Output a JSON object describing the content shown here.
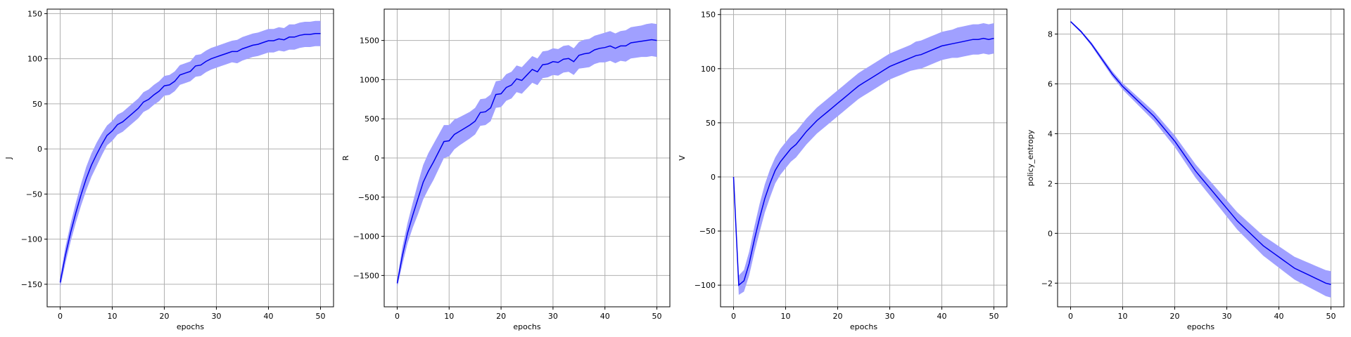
{
  "colors": {
    "line": "#0000ee",
    "band": "#a0a0ff",
    "grid": "#b0b0b0",
    "axis": "#000000"
  },
  "chart_data": [
    {
      "type": "line",
      "xlabel": "epochs",
      "ylabel": "J",
      "xlim": [
        -2.5,
        52.5
      ],
      "ylim": [
        -175,
        155
      ],
      "xticks": [
        0,
        10,
        20,
        30,
        40,
        50
      ],
      "yticks": [
        -150,
        -100,
        -50,
        0,
        50,
        100,
        150
      ],
      "grid": true,
      "band": "mean ± std",
      "x": [
        0,
        1,
        2,
        3,
        4,
        5,
        6,
        7,
        8,
        9,
        10,
        11,
        12,
        13,
        14,
        15,
        16,
        17,
        18,
        19,
        20,
        21,
        22,
        23,
        24,
        25,
        26,
        27,
        28,
        29,
        30,
        31,
        32,
        33,
        34,
        35,
        36,
        37,
        38,
        39,
        40,
        41,
        42,
        43,
        44,
        45,
        46,
        47,
        48,
        49,
        50
      ],
      "mean": [
        -148,
        -118,
        -93,
        -71,
        -51,
        -33,
        -18,
        -6,
        5,
        15,
        20,
        27,
        30,
        35,
        40,
        45,
        52,
        55,
        60,
        64,
        70,
        71,
        75,
        82,
        84,
        86,
        92,
        93,
        97,
        100,
        102,
        104,
        106,
        108,
        108,
        111,
        113,
        115,
        116,
        118,
        120,
        120,
        122,
        121,
        124,
        124,
        126,
        127,
        127,
        128,
        128
      ],
      "std": [
        6,
        9,
        10,
        11,
        12,
        13,
        13,
        13,
        12,
        11,
        11,
        11,
        11,
        11,
        11,
        11,
        11,
        11,
        11,
        11,
        11,
        11,
        11,
        11,
        11,
        11,
        12,
        12,
        12,
        12,
        12,
        12,
        12,
        12,
        13,
        13,
        13,
        13,
        13,
        13,
        13,
        13,
        13,
        13,
        14,
        14,
        14,
        14,
        14,
        14,
        14
      ]
    },
    {
      "type": "line",
      "xlabel": "epochs",
      "ylabel": "R",
      "xlim": [
        -2.5,
        52.5
      ],
      "ylim": [
        -1900,
        1900
      ],
      "xticks": [
        0,
        10,
        20,
        30,
        40,
        50
      ],
      "yticks": [
        -1500,
        -1000,
        -500,
        0,
        500,
        1000,
        1500
      ],
      "grid": true,
      "band": "mean ± std",
      "x": [
        0,
        1,
        2,
        3,
        4,
        5,
        6,
        7,
        8,
        9,
        10,
        11,
        12,
        13,
        14,
        15,
        16,
        17,
        18,
        19,
        20,
        21,
        22,
        23,
        24,
        25,
        26,
        27,
        28,
        29,
        30,
        31,
        32,
        33,
        34,
        35,
        36,
        37,
        38,
        39,
        40,
        41,
        42,
        43,
        44,
        45,
        46,
        47,
        48,
        49,
        50
      ],
      "mean": [
        -1600,
        -1250,
        -960,
        -730,
        -520,
        -310,
        -170,
        -50,
        80,
        210,
        220,
        300,
        340,
        380,
        420,
        470,
        580,
        590,
        640,
        810,
        820,
        900,
        930,
        1010,
        990,
        1060,
        1130,
        1100,
        1190,
        1200,
        1230,
        1220,
        1260,
        1270,
        1230,
        1310,
        1330,
        1340,
        1380,
        1400,
        1410,
        1430,
        1400,
        1430,
        1430,
        1470,
        1480,
        1490,
        1500,
        1510,
        1500
      ],
      "std": [
        50,
        110,
        130,
        160,
        200,
        220,
        230,
        230,
        220,
        210,
        200,
        190,
        180,
        175,
        170,
        170,
        170,
        170,
        170,
        170,
        170,
        170,
        170,
        170,
        170,
        170,
        170,
        170,
        170,
        170,
        170,
        170,
        170,
        170,
        170,
        170,
        180,
        180,
        180,
        180,
        190,
        190,
        190,
        190,
        200,
        200,
        200,
        200,
        210,
        210,
        210
      ]
    },
    {
      "type": "line",
      "xlabel": "epochs",
      "ylabel": "V",
      "xlim": [
        -2.5,
        52.5
      ],
      "ylim": [
        -120,
        155
      ],
      "xticks": [
        0,
        10,
        20,
        30,
        40,
        50
      ],
      "yticks": [
        -100,
        -50,
        0,
        50,
        100,
        150
      ],
      "grid": true,
      "band": "mean ± std",
      "x": [
        0,
        1,
        2,
        3,
        4,
        5,
        6,
        7,
        8,
        9,
        10,
        11,
        12,
        13,
        14,
        15,
        16,
        17,
        18,
        19,
        20,
        21,
        22,
        23,
        24,
        25,
        26,
        27,
        28,
        29,
        30,
        31,
        32,
        33,
        34,
        35,
        36,
        37,
        38,
        39,
        40,
        41,
        42,
        43,
        44,
        45,
        46,
        47,
        48,
        49,
        50
      ],
      "mean": [
        0,
        -100,
        -96,
        -80,
        -58,
        -38,
        -20,
        -6,
        6,
        14,
        20,
        26,
        30,
        36,
        42,
        47,
        52,
        56,
        60,
        64,
        68,
        72,
        76,
        80,
        84,
        87,
        90,
        93,
        96,
        99,
        102,
        104,
        106,
        108,
        110,
        112,
        113,
        115,
        117,
        119,
        121,
        122,
        123,
        124,
        125,
        126,
        127,
        127,
        128,
        127,
        128
      ],
      "std": [
        0,
        9,
        10,
        11,
        12,
        13,
        13,
        13,
        12,
        12,
        12,
        12,
        12,
        12,
        12,
        12,
        12,
        12,
        12,
        12,
        12,
        12,
        12,
        12,
        12,
        12,
        12,
        12,
        12,
        12,
        12,
        12,
        12,
        12,
        12,
        13,
        13,
        13,
        13,
        13,
        13,
        13,
        13,
        14,
        14,
        14,
        14,
        14,
        14,
        14,
        14
      ]
    },
    {
      "type": "line",
      "xlabel": "epochs",
      "ylabel": "policy_entropy",
      "xlim": [
        -2.5,
        52.5
      ],
      "ylim": [
        -2.95,
        9.0
      ],
      "xticks": [
        0,
        10,
        20,
        30,
        40,
        50
      ],
      "yticks": [
        -2,
        0,
        2,
        4,
        6,
        8
      ],
      "grid": true,
      "band": "mean ± std",
      "x": [
        0,
        1,
        2,
        3,
        4,
        5,
        6,
        7,
        8,
        9,
        10,
        11,
        12,
        13,
        14,
        15,
        16,
        17,
        18,
        19,
        20,
        21,
        22,
        23,
        24,
        25,
        26,
        27,
        28,
        29,
        30,
        31,
        32,
        33,
        34,
        35,
        36,
        37,
        38,
        39,
        40,
        41,
        42,
        43,
        44,
        45,
        46,
        47,
        48,
        49,
        50
      ],
      "mean": [
        8.5,
        8.3,
        8.1,
        7.85,
        7.6,
        7.3,
        7.0,
        6.7,
        6.4,
        6.15,
        5.9,
        5.7,
        5.5,
        5.3,
        5.1,
        4.9,
        4.7,
        4.45,
        4.2,
        3.95,
        3.7,
        3.4,
        3.1,
        2.8,
        2.5,
        2.25,
        2.0,
        1.75,
        1.5,
        1.25,
        1.0,
        0.75,
        0.5,
        0.3,
        0.1,
        -0.1,
        -0.3,
        -0.5,
        -0.65,
        -0.8,
        -0.95,
        -1.1,
        -1.25,
        -1.4,
        -1.5,
        -1.6,
        -1.7,
        -1.8,
        -1.9,
        -2.0,
        -2.05
      ],
      "std": [
        0.03,
        0.04,
        0.05,
        0.06,
        0.07,
        0.08,
        0.09,
        0.1,
        0.11,
        0.12,
        0.13,
        0.14,
        0.15,
        0.16,
        0.17,
        0.18,
        0.19,
        0.2,
        0.21,
        0.22,
        0.23,
        0.24,
        0.25,
        0.26,
        0.27,
        0.28,
        0.29,
        0.3,
        0.31,
        0.32,
        0.33,
        0.34,
        0.35,
        0.36,
        0.37,
        0.38,
        0.39,
        0.4,
        0.41,
        0.42,
        0.43,
        0.44,
        0.45,
        0.46,
        0.47,
        0.48,
        0.49,
        0.5,
        0.51,
        0.52,
        0.53
      ]
    }
  ]
}
